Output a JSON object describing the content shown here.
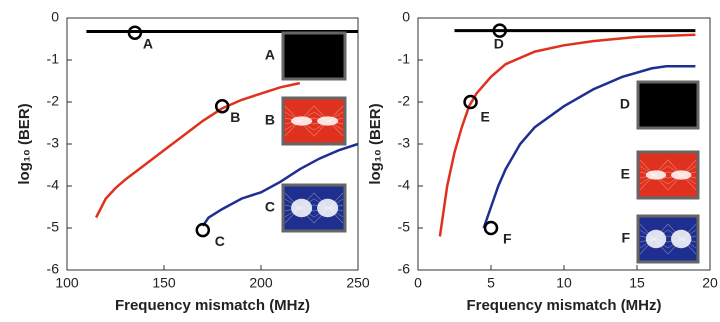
{
  "chart_data": [
    {
      "type": "line",
      "xlabel": "Frequency mismatch (MHz)",
      "ylabel": "log₁₀ (BER)",
      "xlim": [
        100,
        250
      ],
      "xticks": [
        100,
        150,
        200,
        250
      ],
      "ylim": [
        -6,
        0
      ],
      "yticks": [
        0,
        -1,
        -2,
        -3,
        -4,
        -5,
        -6
      ],
      "series": [
        {
          "color": "#000000",
          "x": [
            110,
            250
          ],
          "values": [
            -0.32,
            -0.32
          ]
        },
        {
          "color": "#e0301e",
          "x": [
            115,
            120,
            125,
            130,
            140,
            150,
            160,
            170,
            180,
            190,
            200,
            210,
            220
          ],
          "values": [
            -4.75,
            -4.3,
            -4.05,
            -3.85,
            -3.5,
            -3.15,
            -2.8,
            -2.45,
            -2.15,
            -1.95,
            -1.8,
            -1.65,
            -1.55
          ]
        },
        {
          "color": "#1f2f8f",
          "x": [
            170,
            173,
            180,
            190,
            200,
            210,
            220,
            230,
            240,
            250
          ],
          "values": [
            -4.95,
            -4.75,
            -4.55,
            -4.3,
            -4.15,
            -3.9,
            -3.6,
            -3.35,
            -3.15,
            -3.0
          ]
        }
      ],
      "annotations": [
        {
          "label": "A",
          "x": 135,
          "y": -0.35
        },
        {
          "label": "B",
          "x": 180,
          "y": -2.1
        },
        {
          "label": "C",
          "x": 170,
          "y": -5.05
        }
      ],
      "insets": [
        {
          "label": "A",
          "color": "#000000"
        },
        {
          "label": "B",
          "color": "#e0301e"
        },
        {
          "label": "C",
          "color": "#1f2f8f"
        }
      ]
    },
    {
      "type": "line",
      "xlabel": "Frequency mismatch (MHz)",
      "ylabel": "log₁₀ (BER)",
      "xlim": [
        0,
        20
      ],
      "xticks": [
        0,
        5,
        10,
        15,
        20
      ],
      "ylim": [
        -6,
        0
      ],
      "yticks": [
        0,
        -1,
        -2,
        -3,
        -4,
        -5,
        -6
      ],
      "series": [
        {
          "color": "#000000",
          "x": [
            2.5,
            19
          ],
          "values": [
            -0.3,
            -0.3
          ]
        },
        {
          "color": "#e0301e",
          "x": [
            1.5,
            2,
            2.5,
            3,
            3.5,
            4,
            5,
            6,
            8,
            10,
            12,
            15,
            19
          ],
          "values": [
            -5.2,
            -4,
            -3.2,
            -2.6,
            -2.1,
            -1.8,
            -1.4,
            -1.1,
            -0.8,
            -0.65,
            -0.55,
            -0.45,
            -0.4
          ]
        },
        {
          "color": "#1f2f8f",
          "x": [
            4.5,
            5,
            5.5,
            6,
            7,
            8,
            10,
            12,
            14,
            16,
            17,
            19
          ],
          "values": [
            -5,
            -4.5,
            -4,
            -3.6,
            -3,
            -2.6,
            -2.1,
            -1.7,
            -1.4,
            -1.2,
            -1.15,
            -1.15
          ]
        }
      ],
      "annotations": [
        {
          "label": "D",
          "x": 5.6,
          "y": -0.3
        },
        {
          "label": "E",
          "x": 3.6,
          "y": -2
        },
        {
          "label": "F",
          "x": 5,
          "y": -5
        }
      ],
      "insets": [
        {
          "label": "D",
          "color": "#000000"
        },
        {
          "label": "E",
          "color": "#e0301e"
        },
        {
          "label": "F",
          "color": "#1f2f8f"
        }
      ]
    }
  ]
}
